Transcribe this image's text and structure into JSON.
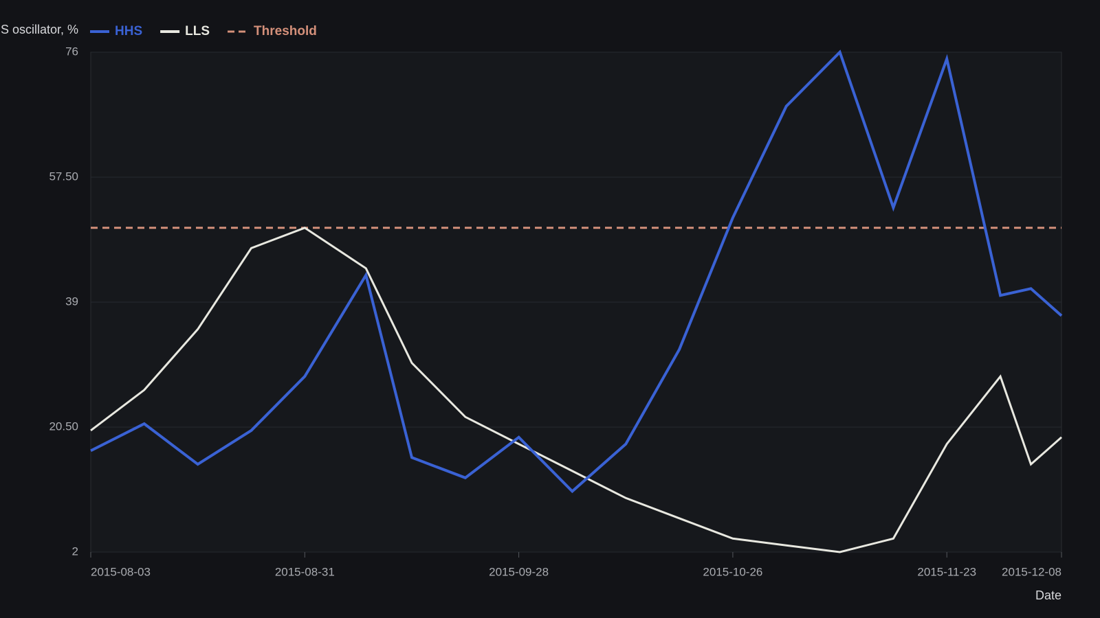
{
  "chart_data": {
    "type": "line",
    "ylabel": "S oscillator, %",
    "xlabel": "Date",
    "x": [
      "2015-08-03",
      "2015-08-10",
      "2015-08-17",
      "2015-08-24",
      "2015-08-31",
      "2015-09-08",
      "2015-09-14",
      "2015-09-21",
      "2015-09-28",
      "2015-10-05",
      "2015-10-12",
      "2015-10-19",
      "2015-10-26",
      "2015-11-02",
      "2015-11-09",
      "2015-11-16",
      "2015-11-23",
      "2015-11-30",
      "2015-12-04",
      "2015-12-08"
    ],
    "series": [
      {
        "name": "HHS",
        "color": "#3a62d4",
        "values": [
          17,
          21,
          15,
          20,
          28,
          43,
          16,
          13,
          19,
          11,
          18,
          32,
          51.5,
          68,
          76,
          53,
          75,
          40,
          41,
          37
        ]
      },
      {
        "name": "LLS",
        "color": "#e8e8e0",
        "values": [
          20,
          26,
          35,
          47,
          50,
          44,
          30,
          22,
          18,
          14,
          10,
          7,
          4,
          3,
          2,
          4,
          18,
          28,
          15,
          19
        ]
      }
    ],
    "threshold": {
      "name": "Threshold",
      "value": 50,
      "color": "#d4907a"
    },
    "xlim": [
      "2015-08-03",
      "2015-12-08"
    ],
    "xticks": [
      "2015-08-03",
      "2015-08-31",
      "2015-09-28",
      "2015-10-26",
      "2015-11-23",
      "2015-12-08"
    ],
    "ylim": [
      2,
      76
    ],
    "yticks": [
      2,
      {
        "value": 20.5,
        "label": "20.50"
      },
      39,
      {
        "value": 57.5,
        "label": "57.50"
      },
      76
    ],
    "grid": true
  }
}
